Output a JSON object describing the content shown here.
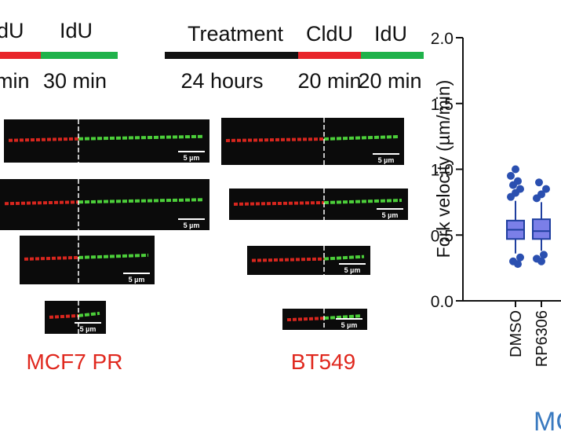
{
  "left_scheme": {
    "labels": [
      "dU",
      "IdU"
    ],
    "times": [
      "min",
      "30 min"
    ]
  },
  "middle_scheme": {
    "labels": [
      "Treatment",
      "CldU",
      "IdU"
    ],
    "times": [
      "24 hours",
      "20 min",
      "20 min"
    ]
  },
  "scale_label": "5 µm",
  "cell_lines": [
    "MCF7 PR",
    "BT549"
  ],
  "footer_label": "MC",
  "chart_data": {
    "type": "box",
    "y_label": "Fork velocity (µm/min)",
    "categories": [
      "DMSO",
      "RP6306"
    ],
    "ylim": [
      0,
      2
    ],
    "yticks": [
      {
        "value": 0,
        "label": "0.0"
      },
      0.5,
      {
        "value": 1,
        "label": "1.0"
      },
      1.5,
      {
        "value": 2,
        "label": "2.0"
      }
    ],
    "color": "#7b7fe8",
    "edge_color": "#1f3f9f",
    "boxes": [
      {
        "min": 0.36,
        "q1": 0.47,
        "median": 0.54,
        "q3": 0.61,
        "max": 0.76,
        "outliers": [
          0.79,
          0.82,
          0.85,
          0.88,
          0.91,
          0.95,
          1.0,
          0.33,
          0.3,
          0.28
        ]
      },
      {
        "min": 0.38,
        "q1": 0.47,
        "median": 0.53,
        "q3": 0.62,
        "max": 0.75,
        "outliers": [
          0.78,
          0.81,
          0.85,
          0.9,
          0.35,
          0.32,
          0.3
        ]
      }
    ]
  }
}
